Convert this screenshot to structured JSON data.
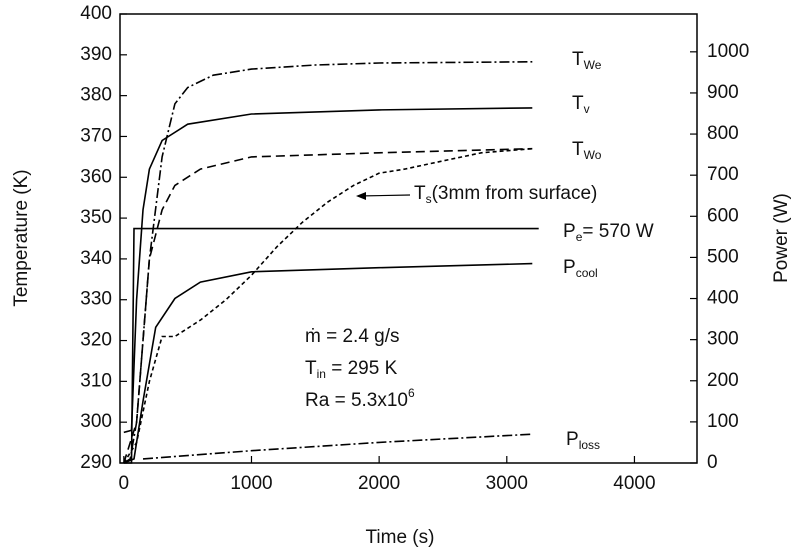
{
  "chart_data": {
    "type": "line",
    "xlabel": "Time (s)",
    "ylabel": "Temperature (K)",
    "y2label": "Power (W)",
    "xlim": [
      -30,
      4490
    ],
    "xticks": [
      0,
      1000,
      2000,
      3000,
      4000
    ],
    "ylim": [
      290,
      400
    ],
    "yticks": [
      290,
      300,
      310,
      320,
      330,
      340,
      350,
      360,
      370,
      380,
      390,
      400
    ],
    "y2lim": [
      0,
      1092
    ],
    "y2ticks": [
      0,
      100,
      200,
      300,
      400,
      500,
      600,
      700,
      800,
      900,
      1000
    ],
    "series": [
      {
        "color": "#000000",
        "dash": "dashdot",
        "x": [
          0,
          50,
          100,
          200,
          300,
          400,
          500,
          700,
          1000,
          1500,
          2000,
          3200
        ],
        "values": [
          290,
          291,
          300,
          340,
          365,
          378,
          382,
          385,
          386.5,
          387.5,
          388,
          388.3
        ]
      },
      {
        "color": "#000000",
        "dash": "solid",
        "x": [
          0,
          60,
          100,
          150,
          200,
          300,
          500,
          1000,
          2000,
          3200
        ],
        "values": [
          297.5,
          298,
          330,
          352,
          362,
          369,
          373,
          375.5,
          376.5,
          377
        ]
      },
      {
        "color": "#000000",
        "dash": "dash",
        "x": [
          0,
          100,
          150,
          200,
          300,
          400,
          600,
          1000,
          2000,
          3200
        ],
        "values": [
          290,
          300,
          320,
          340,
          352,
          358,
          362,
          365,
          366,
          367
        ]
      },
      {
        "color": "#000000",
        "dash": "shortdash",
        "x": [
          0,
          100,
          200,
          300,
          400,
          600,
          800,
          1000,
          1200,
          1400,
          1600,
          1800,
          2000,
          2200,
          2500,
          2800,
          3200
        ],
        "values": [
          290,
          295,
          310,
          321,
          321,
          325,
          330,
          336,
          343,
          349,
          354,
          358,
          361,
          362,
          364,
          366,
          367
        ]
      },
      {
        "color": "#000000",
        "dash": "solid",
        "axis": "y2",
        "x": [
          0,
          60,
          80,
          3250
        ],
        "values": [
          0,
          0,
          570,
          570
        ]
      },
      {
        "color": "#000000",
        "dash": "solid",
        "axis": "y2",
        "x": [
          0,
          80,
          150,
          250,
          400,
          600,
          1000,
          2000,
          3200
        ],
        "values": [
          0,
          10,
          150,
          330,
          400,
          440,
          465,
          475,
          485
        ]
      },
      {
        "color": "#000000",
        "dash": "dashdot",
        "axis": "y2",
        "x": [
          150,
          1000,
          2000,
          3200
        ],
        "values": [
          10,
          30,
          50,
          70
        ]
      }
    ],
    "annotations": [
      {
        "text": "T",
        "sub": "We"
      },
      {
        "text": "T",
        "sub": "v"
      },
      {
        "text": "T",
        "sub": "Wo"
      },
      {
        "text": "T",
        "sub": "s",
        "after": "(3mm from surface)"
      },
      {
        "text": "P",
        "sub": "e",
        "after": "= 570 W"
      },
      {
        "text": "P",
        "sub": "cool"
      },
      {
        "text": "P",
        "sub": "loss"
      },
      {
        "text": "ṁ  =  2.4 g/s"
      },
      {
        "text": "T",
        "sub": "in",
        "after": "  =  295 K"
      },
      {
        "text": "Ra  =  5.3x10",
        "sup": "6"
      }
    ]
  }
}
